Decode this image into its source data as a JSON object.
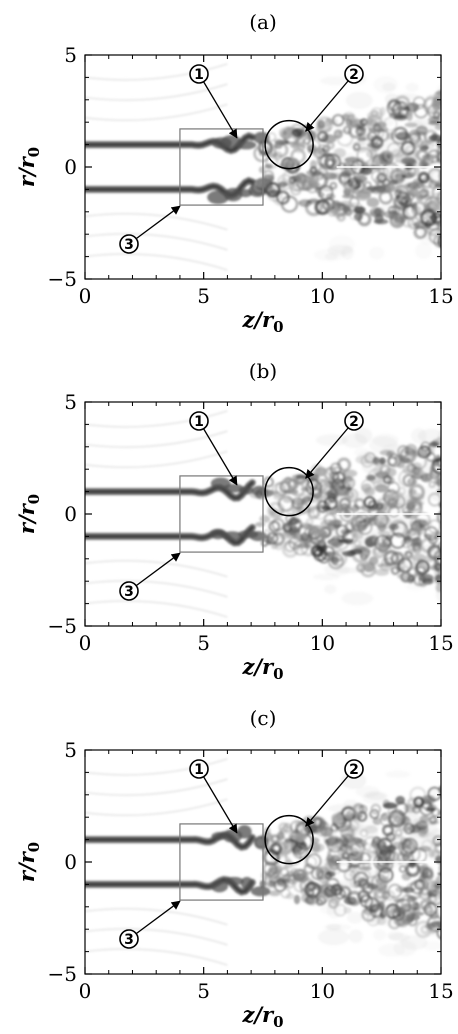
{
  "panels": [
    {
      "label": "(a)",
      "seed": 11
    },
    {
      "label": "(b)",
      "seed": 29
    },
    {
      "label": "(c)",
      "seed": 53
    }
  ],
  "axes": {
    "xlabel": "z/r",
    "xlabel_sub": "0",
    "ylabel": "r/r",
    "ylabel_sub": "0",
    "xlim": [
      0,
      15
    ],
    "ylim": [
      -5,
      5
    ],
    "xticks": [
      0,
      5,
      10,
      15
    ],
    "yticks": [
      5,
      0,
      -5
    ],
    "xtick_labels": [
      "0",
      "5",
      "10",
      "15"
    ],
    "ytick_labels": [
      "5",
      "0",
      "−5"
    ]
  },
  "annotations": {
    "markers": [
      "1",
      "2",
      "3"
    ],
    "box": {
      "z": [
        4,
        7.5
      ],
      "r": [
        -1.7,
        1.7
      ]
    },
    "circle": {
      "z": 8.6,
      "r": 1.0
    }
  }
}
